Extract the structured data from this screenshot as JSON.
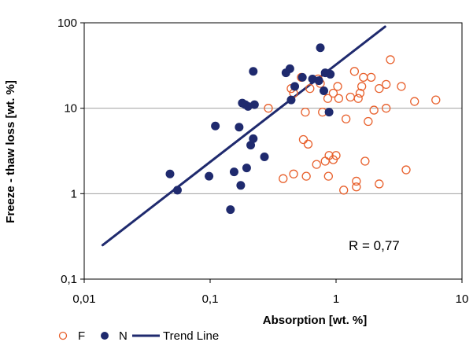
{
  "chart_data": {
    "type": "scatter",
    "xlabel": "Absorption [wt. %]",
    "ylabel": "Freeze - thaw loss [wt. %]",
    "xscale": "log",
    "yscale": "log",
    "xlim": [
      0.01,
      10
    ],
    "ylim": [
      0.1,
      100
    ],
    "x_ticks": [
      "0,01",
      "0,1",
      "1",
      "10"
    ],
    "y_ticks": [
      "0,1",
      "1",
      "10",
      "100"
    ],
    "grid": "horizontal major",
    "legend_position": "bottom-left",
    "annotation": "R = 0,77",
    "colors": {
      "F": "#e8602c",
      "N": "#1f2a6e",
      "trend": "#1f2a6e"
    },
    "series": [
      {
        "name": "F",
        "marker": "open-circle",
        "points": [
          [
            0.29,
            10.0
          ],
          [
            0.44,
            17.0
          ],
          [
            0.46,
            15.0
          ],
          [
            0.53,
            23.0
          ],
          [
            0.57,
            9.0
          ],
          [
            0.62,
            17.0
          ],
          [
            0.72,
            22.0
          ],
          [
            0.75,
            19.5
          ],
          [
            0.86,
            13.0
          ],
          [
            0.95,
            15.0
          ],
          [
            1.03,
            18.0
          ],
          [
            1.2,
            7.5
          ],
          [
            1.3,
            13.5
          ],
          [
            1.4,
            27.0
          ],
          [
            1.5,
            13.0
          ],
          [
            1.55,
            15.0
          ],
          [
            1.6,
            18.0
          ],
          [
            1.65,
            23.0
          ],
          [
            1.8,
            7.0
          ],
          [
            1.9,
            23.0
          ],
          [
            2.0,
            9.5
          ],
          [
            2.2,
            17.0
          ],
          [
            2.5,
            19.0
          ],
          [
            2.5,
            10.0
          ],
          [
            2.7,
            37.0
          ],
          [
            3.3,
            18.0
          ],
          [
            4.2,
            12.0
          ],
          [
            6.2,
            12.5
          ],
          [
            0.78,
            9.0
          ],
          [
            1.05,
            13.0
          ],
          [
            0.38,
            1.5
          ],
          [
            0.46,
            1.7
          ],
          [
            0.55,
            4.3
          ],
          [
            0.6,
            3.8
          ],
          [
            0.58,
            1.6
          ],
          [
            0.7,
            2.2
          ],
          [
            0.82,
            2.4
          ],
          [
            0.87,
            1.6
          ],
          [
            0.88,
            2.8
          ],
          [
            0.95,
            2.5
          ],
          [
            1.0,
            2.8
          ],
          [
            1.15,
            1.1
          ],
          [
            1.45,
            1.2
          ],
          [
            1.45,
            1.4
          ],
          [
            1.7,
            2.4
          ],
          [
            2.2,
            1.3
          ],
          [
            3.6,
            1.9
          ]
        ]
      },
      {
        "name": "N",
        "marker": "filled-circle",
        "points": [
          [
            0.048,
            1.7
          ],
          [
            0.055,
            1.1
          ],
          [
            0.098,
            1.6
          ],
          [
            0.11,
            6.2
          ],
          [
            0.145,
            0.65
          ],
          [
            0.155,
            1.8
          ],
          [
            0.17,
            6.0
          ],
          [
            0.175,
            1.25
          ],
          [
            0.18,
            11.5
          ],
          [
            0.19,
            11.0
          ],
          [
            0.195,
            2.0
          ],
          [
            0.2,
            10.5
          ],
          [
            0.21,
            3.7
          ],
          [
            0.22,
            4.4
          ],
          [
            0.22,
            27.0
          ],
          [
            0.225,
            11.0
          ],
          [
            0.27,
            2.7
          ],
          [
            0.4,
            26.0
          ],
          [
            0.43,
            29.0
          ],
          [
            0.44,
            12.5
          ],
          [
            0.47,
            18.0
          ],
          [
            0.54,
            23.0
          ],
          [
            0.65,
            22.0
          ],
          [
            0.73,
            21.0
          ],
          [
            0.75,
            51.0
          ],
          [
            0.8,
            16.0
          ],
          [
            0.82,
            26.0
          ],
          [
            0.88,
            9.0
          ],
          [
            0.9,
            25.0
          ]
        ]
      },
      {
        "name": "Trend Line",
        "type": "line",
        "points": [
          [
            0.014,
            0.25
          ],
          [
            2.45,
            90.0
          ]
        ]
      }
    ]
  }
}
